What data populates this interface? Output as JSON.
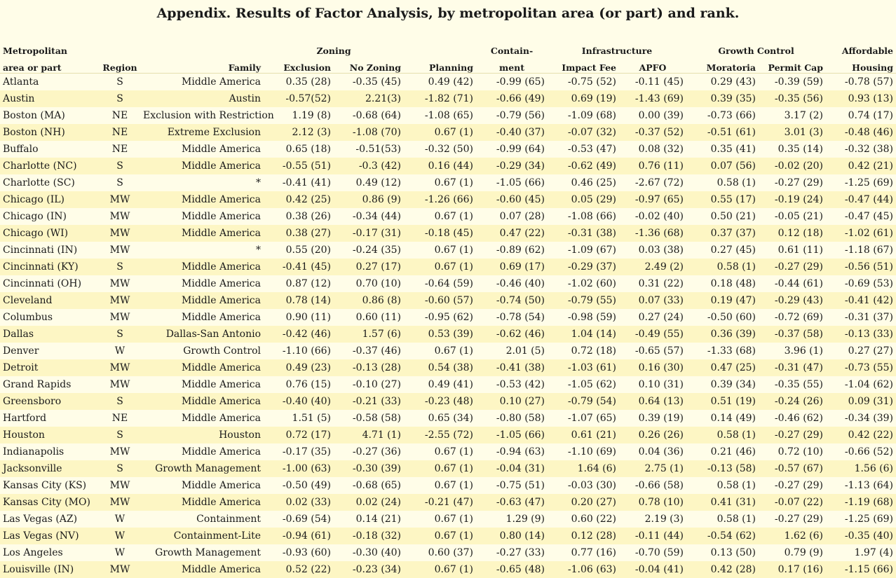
{
  "title": "Appendix. Results of Factor Analysis, by metropolitan area (or part) and rank.",
  "headers": {
    "group": {
      "metro": "Metropolitan",
      "zoning": "Zoning",
      "containment": "Contain-",
      "infrastructure": "Infrastructure",
      "growth_control": "Growth Control",
      "affordable": "Affordable"
    },
    "columns": {
      "metro": "area or part",
      "region": "Region",
      "family": "Family",
      "exclusion": "Exclusion",
      "no_zoning": "No Zoning",
      "planning": "Planning",
      "containment": "ment",
      "impact_fee": "Impact Fee",
      "apfo": "APFO",
      "moratoria": "Moratoria",
      "permit_cap": "Permit Cap",
      "housing": "Housing"
    }
  },
  "rows": [
    {
      "area": "Atlanta",
      "region": "S",
      "family": "Middle America",
      "exclusion": "0.35 (28)",
      "no_zoning": "-0.35 (45)",
      "planning": "0.49 (42)",
      "containment": "-0.99 (65)",
      "impact_fee": "-0.75 (52)",
      "apfo": "-0.11 (45)",
      "moratoria": "0.29 (43)",
      "permit_cap": "-0.39 (59)",
      "housing": "-0.78 (57)"
    },
    {
      "area": "Austin",
      "region": "S",
      "family": "Austin",
      "exclusion": "-0.57(52)",
      "no_zoning": "2.21(3)",
      "planning": "-1.82 (71)",
      "containment": "-0.66 (49)",
      "impact_fee": "0.69 (19)",
      "apfo": "-1.43 (69)",
      "moratoria": "0.39 (35)",
      "permit_cap": "-0.35 (56)",
      "housing": "0.93 (13)"
    },
    {
      "area": "Boston (MA)",
      "region": "NE",
      "family": "Exclusion with Restriction",
      "exclusion": "1.19 (8)",
      "no_zoning": "-0.68 (64)",
      "planning": "-1.08 (65)",
      "containment": "-0.79 (56)",
      "impact_fee": "-1.09 (68)",
      "apfo": "0.00 (39)",
      "moratoria": "-0.73 (66)",
      "permit_cap": "3.17 (2)",
      "housing": "0.74 (17)"
    },
    {
      "area": "Boston (NH)",
      "region": "NE",
      "family": "Extreme Exclusion",
      "exclusion": "2.12 (3)",
      "no_zoning": "-1.08 (70)",
      "planning": "0.67 (1)",
      "containment": "-0.40 (37)",
      "impact_fee": "-0.07 (32)",
      "apfo": "-0.37 (52)",
      "moratoria": "-0.51 (61)",
      "permit_cap": "3.01 (3)",
      "housing": "-0.48 (46)"
    },
    {
      "area": "Buffalo",
      "region": "NE",
      "family": "Middle America",
      "exclusion": "0.65 (18)",
      "no_zoning": "-0.51(53)",
      "planning": "-0.32 (50)",
      "containment": "-0.99 (64)",
      "impact_fee": "-0.53 (47)",
      "apfo": "0.08 (32)",
      "moratoria": "0.35 (41)",
      "permit_cap": "0.35 (14)",
      "housing": "-0.32 (38)"
    },
    {
      "area": "Charlotte (NC)",
      "region": "S",
      "family": "Middle America",
      "exclusion": "-0.55 (51)",
      "no_zoning": "-0.3 (42)",
      "planning": "0.16 (44)",
      "containment": "-0.29 (34)",
      "impact_fee": "-0.62 (49)",
      "apfo": "0.76 (11)",
      "moratoria": "0.07 (56)",
      "permit_cap": "-0.02 (20)",
      "housing": "0.42 (21)"
    },
    {
      "area": "Charlotte (SC)",
      "region": "S",
      "family": "*",
      "exclusion": "-0.41 (41)",
      "no_zoning": "0.49 (12)",
      "planning": "0.67 (1)",
      "containment": "-1.05 (66)",
      "impact_fee": "0.46 (25)",
      "apfo": "-2.67 (72)",
      "moratoria": "0.58 (1)",
      "permit_cap": "-0.27 (29)",
      "housing": "-1.25 (69)"
    },
    {
      "area": "Chicago (IL)",
      "region": "MW",
      "family": "Middle America",
      "exclusion": "0.42 (25)",
      "no_zoning": "0.86 (9)",
      "planning": "-1.26 (66)",
      "containment": "-0.60 (45)",
      "impact_fee": "0.05 (29)",
      "apfo": "-0.97 (65)",
      "moratoria": "0.55 (17)",
      "permit_cap": "-0.19 (24)",
      "housing": "-0.47 (44)"
    },
    {
      "area": "Chicago (IN)",
      "region": "MW",
      "family": "Middle America",
      "exclusion": "0.38 (26)",
      "no_zoning": "-0.34 (44)",
      "planning": "0.67 (1)",
      "containment": "0.07 (28)",
      "impact_fee": "-1.08 (66)",
      "apfo": "-0.02 (40)",
      "moratoria": "0.50 (21)",
      "permit_cap": "-0.05 (21)",
      "housing": "-0.47 (45)"
    },
    {
      "area": "Chicago (WI)",
      "region": "MW",
      "family": "Middle America",
      "exclusion": "0.38 (27)",
      "no_zoning": "-0.17 (31)",
      "planning": "-0.18 (45)",
      "containment": "0.47 (22)",
      "impact_fee": "-0.31 (38)",
      "apfo": "-1.36 (68)",
      "moratoria": "0.37 (37)",
      "permit_cap": "0.12 (18)",
      "housing": "-1.02 (61)"
    },
    {
      "area": "Cincinnati (IN)",
      "region": "MW",
      "family": "*",
      "exclusion": "0.55 (20)",
      "no_zoning": "-0.24 (35)",
      "planning": "0.67 (1)",
      "containment": "-0.89 (62)",
      "impact_fee": "-1.09 (67)",
      "apfo": "0.03 (38)",
      "moratoria": "0.27 (45)",
      "permit_cap": "0.61 (11)",
      "housing": "-1.18 (67)"
    },
    {
      "area": "Cincinnati (KY)",
      "region": "S",
      "family": "Middle America",
      "exclusion": "-0.41 (45)",
      "no_zoning": "0.27 (17)",
      "planning": "0.67 (1)",
      "containment": "0.69 (17)",
      "impact_fee": "-0.29 (37)",
      "apfo": "2.49 (2)",
      "moratoria": "0.58 (1)",
      "permit_cap": "-0.27 (29)",
      "housing": "-0.56 (51)"
    },
    {
      "area": "Cincinnati (OH)",
      "region": "MW",
      "family": "Middle America",
      "exclusion": "0.87 (12)",
      "no_zoning": "0.70 (10)",
      "planning": "-0.64 (59)",
      "containment": "-0.46 (40)",
      "impact_fee": "-1.02 (60)",
      "apfo": "0.31 (22)",
      "moratoria": "0.18 (48)",
      "permit_cap": "-0.44 (61)",
      "housing": "-0.69 (53)"
    },
    {
      "area": "Cleveland",
      "region": "MW",
      "family": "Middle America",
      "exclusion": "0.78 (14)",
      "no_zoning": "0.86 (8)",
      "planning": "-0.60 (57)",
      "containment": "-0.74 (50)",
      "impact_fee": "-0.79 (55)",
      "apfo": "0.07 (33)",
      "moratoria": "0.19 (47)",
      "permit_cap": "-0.29 (43)",
      "housing": "-0.41 (42)"
    },
    {
      "area": "Columbus",
      "region": "MW",
      "family": "Middle America",
      "exclusion": "0.90 (11)",
      "no_zoning": "0.60 (11)",
      "planning": "-0.95 (62)",
      "containment": "-0.78 (54)",
      "impact_fee": "-0.98 (59)",
      "apfo": "0.27 (24)",
      "moratoria": "-0.50 (60)",
      "permit_cap": "-0.72 (69)",
      "housing": "-0.31 (37)"
    },
    {
      "area": "Dallas",
      "region": "S",
      "family": "Dallas-San Antonio",
      "exclusion": "-0.42 (46)",
      "no_zoning": "1.57 (6)",
      "planning": "0.53 (39)",
      "containment": "-0.62 (46)",
      "impact_fee": "1.04 (14)",
      "apfo": "-0.49 (55)",
      "moratoria": "0.36 (39)",
      "permit_cap": "-0.37 (58)",
      "housing": "-0.13 (33)"
    },
    {
      "area": "Denver",
      "region": "W",
      "family": "Growth Control",
      "exclusion": "-1.10 (66)",
      "no_zoning": "-0.37 (46)",
      "planning": "0.67 (1)",
      "containment": "2.01 (5)",
      "impact_fee": "0.72 (18)",
      "apfo": "-0.65 (57)",
      "moratoria": "-1.33 (68)",
      "permit_cap": "3.96 (1)",
      "housing": "0.27 (27)"
    },
    {
      "area": "Detroit",
      "region": "MW",
      "family": "Middle America",
      "exclusion": "0.49 (23)",
      "no_zoning": "-0.13 (28)",
      "planning": "0.54 (38)",
      "containment": "-0.41 (38)",
      "impact_fee": "-1.03 (61)",
      "apfo": "0.16 (30)",
      "moratoria": "0.47 (25)",
      "permit_cap": "-0.31 (47)",
      "housing": "-0.73 (55)"
    },
    {
      "area": "Grand Rapids",
      "region": "MW",
      "family": "Middle America",
      "exclusion": "0.76 (15)",
      "no_zoning": "-0.10 (27)",
      "planning": "0.49 (41)",
      "containment": "-0.53 (42)",
      "impact_fee": "-1.05 (62)",
      "apfo": "0.10 (31)",
      "moratoria": "0.39 (34)",
      "permit_cap": "-0.35 (55)",
      "housing": "-1.04 (62)"
    },
    {
      "area": "Greensboro",
      "region": "S",
      "family": "Middle America",
      "exclusion": "-0.40 (40)",
      "no_zoning": "-0.21 (33)",
      "planning": "-0.23 (48)",
      "containment": "0.10 (27)",
      "impact_fee": "-0.79 (54)",
      "apfo": "0.64 (13)",
      "moratoria": "0.51 (19)",
      "permit_cap": "-0.24 (26)",
      "housing": "0.09 (31)"
    },
    {
      "area": "Hartford",
      "region": "NE",
      "family": "Middle America",
      "exclusion": "1.51 (5)",
      "no_zoning": "-0.58 (58)",
      "planning": "0.65 (34)",
      "containment": "-0.80 (58)",
      "impact_fee": "-1.07 (65)",
      "apfo": "0.39 (19)",
      "moratoria": "0.14 (49)",
      "permit_cap": "-0.46 (62)",
      "housing": "-0.34 (39)"
    },
    {
      "area": "Houston",
      "region": "S",
      "family": "Houston",
      "exclusion": "0.72 (17)",
      "no_zoning": "4.71 (1)",
      "planning": "-2.55 (72)",
      "containment": "-1.05 (66)",
      "impact_fee": "0.61 (21)",
      "apfo": "0.26 (26)",
      "moratoria": "0.58 (1)",
      "permit_cap": "-0.27 (29)",
      "housing": "0.42 (22)"
    },
    {
      "area": "Indianapolis",
      "region": "MW",
      "family": "Middle America",
      "exclusion": "-0.17 (35)",
      "no_zoning": "-0.27 (36)",
      "planning": "0.67 (1)",
      "containment": "-0.94 (63)",
      "impact_fee": "-1.10 (69)",
      "apfo": "0.04 (36)",
      "moratoria": "0.21 (46)",
      "permit_cap": "0.72 (10)",
      "housing": "-0.66 (52)"
    },
    {
      "area": "Jacksonville",
      "region": "S",
      "family": "Growth Management",
      "exclusion": "-1.00 (63)",
      "no_zoning": "-0.30 (39)",
      "planning": "0.67 (1)",
      "containment": "-0.04 (31)",
      "impact_fee": "1.64 (6)",
      "apfo": "2.75 (1)",
      "moratoria": "-0.13 (58)",
      "permit_cap": "-0.57 (67)",
      "housing": "1.56 (6)"
    },
    {
      "area": "Kansas City (KS)",
      "region": "MW",
      "family": "Middle America",
      "exclusion": "-0.50 (49)",
      "no_zoning": "-0.68 (65)",
      "planning": "0.67 (1)",
      "containment": "-0.75 (51)",
      "impact_fee": "-0.03 (30)",
      "apfo": "-0.66 (58)",
      "moratoria": "0.58 (1)",
      "permit_cap": "-0.27 (29)",
      "housing": "-1.13 (64)"
    },
    {
      "area": "Kansas City (MO)",
      "region": "MW",
      "family": "Middle America",
      "exclusion": "0.02 (33)",
      "no_zoning": "0.02 (24)",
      "planning": "-0.21 (47)",
      "containment": "-0.63 (47)",
      "impact_fee": "0.20 (27)",
      "apfo": "0.78 (10)",
      "moratoria": "0.41 (31)",
      "permit_cap": "-0.07 (22)",
      "housing": "-1.19 (68)"
    },
    {
      "area": "Las Vegas (AZ)",
      "region": "W",
      "family": "Containment",
      "exclusion": "-0.69 (54)",
      "no_zoning": "0.14 (21)",
      "planning": "0.67 (1)",
      "containment": "1.29 (9)",
      "impact_fee": "0.60 (22)",
      "apfo": "2.19 (3)",
      "moratoria": "0.58 (1)",
      "permit_cap": "-0.27 (29)",
      "housing": "-1.25 (69)"
    },
    {
      "area": "Las Vegas (NV)",
      "region": "W",
      "family": "Containment-Lite",
      "exclusion": "-0.94 (61)",
      "no_zoning": "-0.18 (32)",
      "planning": "0.67 (1)",
      "containment": "0.80 (14)",
      "impact_fee": "0.12 (28)",
      "apfo": "-0.11 (44)",
      "moratoria": "-0.54 (62)",
      "permit_cap": "1.62 (6)",
      "housing": "-0.35 (40)"
    },
    {
      "area": "Los Angeles",
      "region": "W",
      "family": "Growth Management",
      "exclusion": "-0.93 (60)",
      "no_zoning": "-0.30 (40)",
      "planning": "0.60 (37)",
      "containment": "-0.27 (33)",
      "impact_fee": "0.77 (16)",
      "apfo": "-0.70 (59)",
      "moratoria": "0.13 (50)",
      "permit_cap": "0.79 (9)",
      "housing": "1.97 (4)"
    },
    {
      "area": "Louisville (IN)",
      "region": "MW",
      "family": "Middle America",
      "exclusion": "0.52 (22)",
      "no_zoning": "-0.23 (34)",
      "planning": "0.67 (1)",
      "containment": "-0.65 (48)",
      "impact_fee": "-1.06 (63)",
      "apfo": "-0.04 (41)",
      "moratoria": "0.42 (28)",
      "permit_cap": "0.17 (16)",
      "housing": "-1.15 (66)"
    }
  ]
}
